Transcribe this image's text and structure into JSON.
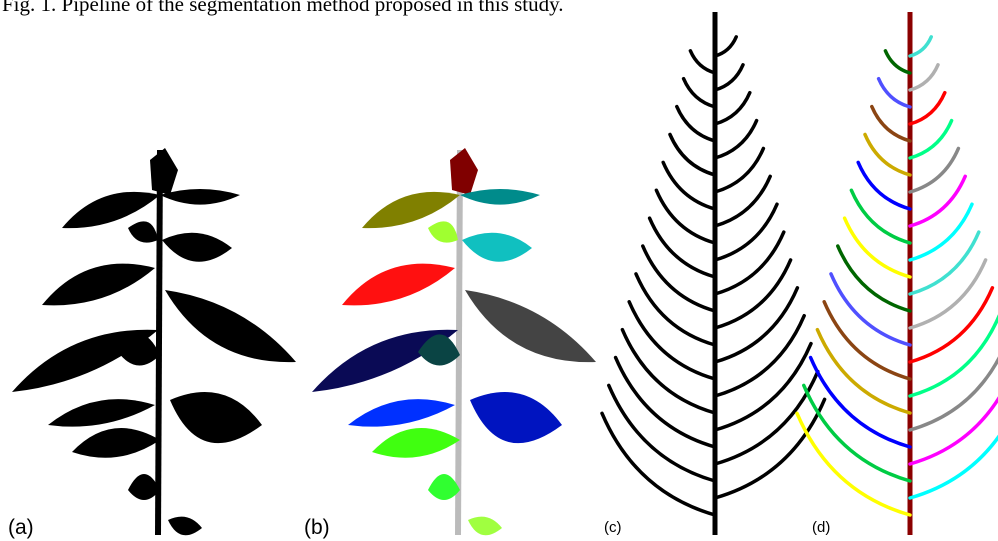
{
  "caption": "Fig. 1. Pipeline of the segmentation method proposed in this study.",
  "panels": [
    {
      "label": "(a)"
    },
    {
      "label": "(b)"
    },
    {
      "label": "(c)"
    },
    {
      "label": "(d)"
    }
  ]
}
